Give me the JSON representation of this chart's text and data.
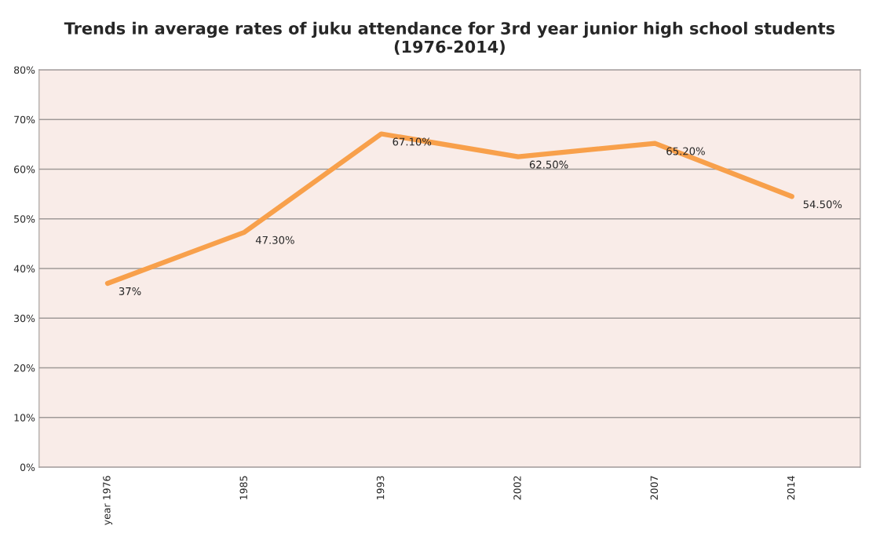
{
  "chart_data": {
    "type": "line",
    "title": "Trends in average rates of juku attendance for 3rd year junior high school students (1976-2014)",
    "categories": [
      "year 1976",
      "1985",
      "1993",
      "2002",
      "2007",
      "2014"
    ],
    "series": [
      {
        "color": "#f8a04b",
        "values": [
          37,
          47.3,
          67.1,
          62.5,
          65.2,
          54.5
        ],
        "value_labels": [
          "37%",
          "47.30%",
          "67.10%",
          "62.50%",
          "65.20%",
          "54.50%"
        ]
      }
    ],
    "ylim": [
      0,
      80
    ],
    "yticks": [
      {
        "value": 0,
        "label": "0%"
      },
      {
        "value": 10,
        "label": "10%"
      },
      {
        "value": 20,
        "label": "20%"
      },
      {
        "value": 30,
        "label": "30%"
      },
      {
        "value": 40,
        "label": "40%"
      },
      {
        "value": 50,
        "label": "50%"
      },
      {
        "value": 60,
        "label": "60%"
      },
      {
        "value": 70,
        "label": "70%"
      },
      {
        "value": 80,
        "label": "80%"
      }
    ],
    "grid": "y",
    "marker": "none",
    "line_style": "solid"
  }
}
